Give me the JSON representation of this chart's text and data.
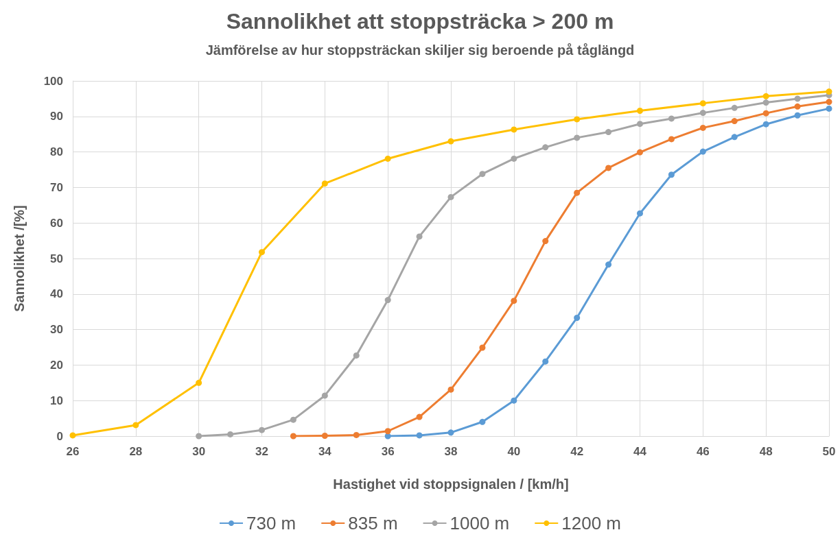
{
  "chart_data": {
    "type": "line",
    "title": "Sannolikhet att stoppsträcka > 200 m",
    "subtitle": "Jämförelse av hur stoppsträckan skiljer sig beroende på tåglängd",
    "xlabel": "Hastighet vid stoppsignalen / [km/h]",
    "ylabel": "Sannolikhet /[%]",
    "xlim": [
      26,
      50
    ],
    "xticks": [
      26,
      28,
      30,
      32,
      34,
      36,
      38,
      40,
      42,
      44,
      46,
      48,
      50
    ],
    "ylim": [
      0,
      100
    ],
    "yticks": [
      0,
      10,
      20,
      30,
      40,
      50,
      60,
      70,
      80,
      90,
      100
    ],
    "grid": true,
    "legend": "bottom",
    "marker": "circle",
    "line_style": "solid",
    "series": [
      {
        "name": "730 m",
        "color": "#5b9bd5",
        "x": [
          36,
          37,
          38,
          39,
          40,
          41,
          42,
          43,
          44,
          45,
          46,
          47,
          48,
          49,
          50
        ],
        "values": [
          0,
          0.2,
          1,
          4,
          10,
          21,
          33.3,
          48.3,
          62.7,
          73.6,
          80.1,
          84.2,
          87.8,
          90.3,
          92.2
        ]
      },
      {
        "name": "835 m",
        "color": "#ed7d31",
        "x": [
          33,
          34,
          35,
          36,
          37,
          38,
          39,
          40,
          41,
          42,
          43,
          44,
          45,
          46,
          47,
          48,
          49,
          50
        ],
        "values": [
          0,
          0.1,
          0.3,
          1.4,
          5.4,
          13.1,
          24.9,
          38.1,
          54.9,
          68.5,
          75.5,
          79.9,
          83.6,
          86.8,
          88.7,
          90.9,
          92.8,
          94.1
        ]
      },
      {
        "name": "1000 m",
        "color": "#a5a5a5",
        "x": [
          30,
          31,
          32,
          33,
          34,
          35,
          36,
          37,
          38,
          39,
          40,
          41,
          42,
          43,
          44,
          45,
          46,
          47,
          48,
          49,
          50
        ],
        "values": [
          0,
          0.5,
          1.7,
          4.6,
          11.4,
          22.7,
          38.3,
          56.2,
          67.3,
          73.8,
          78.1,
          81.3,
          84,
          85.6,
          87.9,
          89.4,
          91,
          92.4,
          93.9,
          95,
          96
        ]
      },
      {
        "name": "1200 m",
        "color": "#ffc000",
        "x": [
          26,
          28,
          30,
          32,
          34,
          36,
          38,
          40,
          42,
          44,
          46,
          48,
          50
        ],
        "values": [
          0.2,
          3.1,
          15,
          51.8,
          71.1,
          78.1,
          83,
          86.3,
          89.2,
          91.6,
          93.7,
          95.7,
          97
        ]
      }
    ]
  }
}
